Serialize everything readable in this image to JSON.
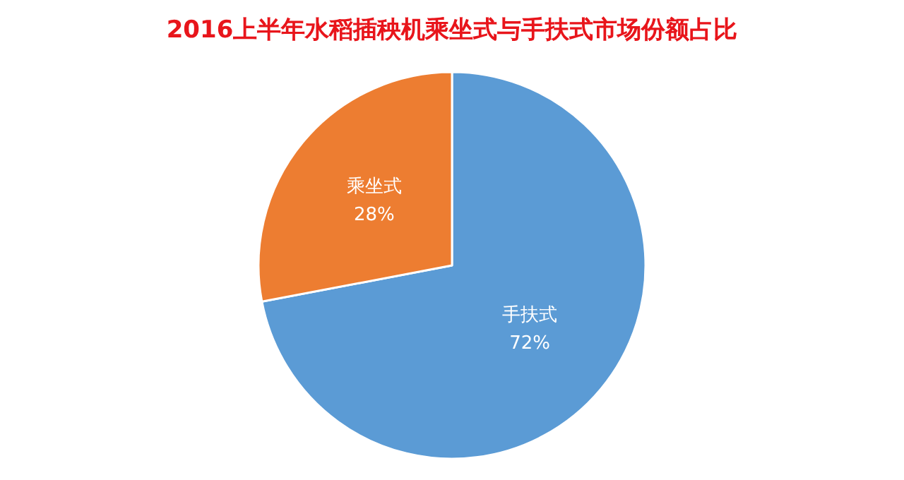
{
  "chart_data": {
    "type": "pie",
    "title": "2016上半年水稻插秧机乘坐式与手扶式市场份额占比",
    "categories": [
      "手扶式",
      "乘坐式"
    ],
    "values": [
      72,
      28
    ],
    "value_labels": [
      "72%",
      "28%"
    ],
    "colors": [
      "#5b9bd5",
      "#ed7d31"
    ],
    "legend": false
  }
}
